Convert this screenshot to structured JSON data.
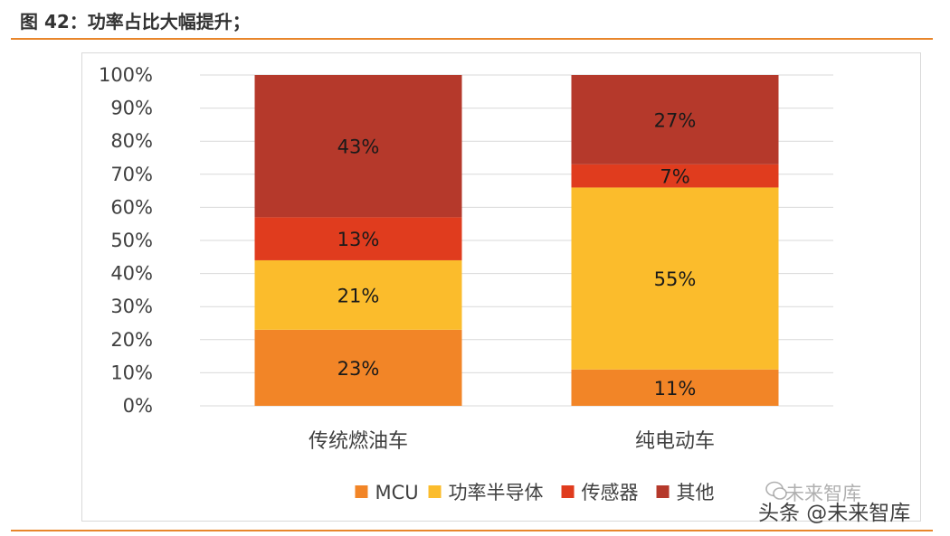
{
  "figure": {
    "title": "图 42：功率占比大幅提升；"
  },
  "chart_data": {
    "type": "bar",
    "stacked": true,
    "percent": true,
    "categories": [
      "传统燃油车",
      "纯电动车"
    ],
    "series": [
      {
        "name": "MCU",
        "color": "#F28527",
        "values": [
          23,
          11
        ]
      },
      {
        "name": "功率半导体",
        "color": "#FBBC2C",
        "values": [
          21,
          55
        ]
      },
      {
        "name": "传感器",
        "color": "#E03C1E",
        "values": [
          13,
          7
        ]
      },
      {
        "name": "其他",
        "color": "#B5392B",
        "values": [
          43,
          27
        ]
      }
    ],
    "ylim": [
      0,
      100
    ],
    "yticks": [
      0,
      10,
      20,
      30,
      40,
      50,
      60,
      70,
      80,
      90,
      100
    ],
    "ytick_labels": [
      "0%",
      "10%",
      "20%",
      "30%",
      "40%",
      "50%",
      "60%",
      "70%",
      "80%",
      "90%",
      "100%"
    ],
    "value_suffix": "%",
    "grid": true,
    "legend": "bottom"
  },
  "watermark": {
    "line1": "未来智库",
    "line2": "头条 @未来智库"
  }
}
